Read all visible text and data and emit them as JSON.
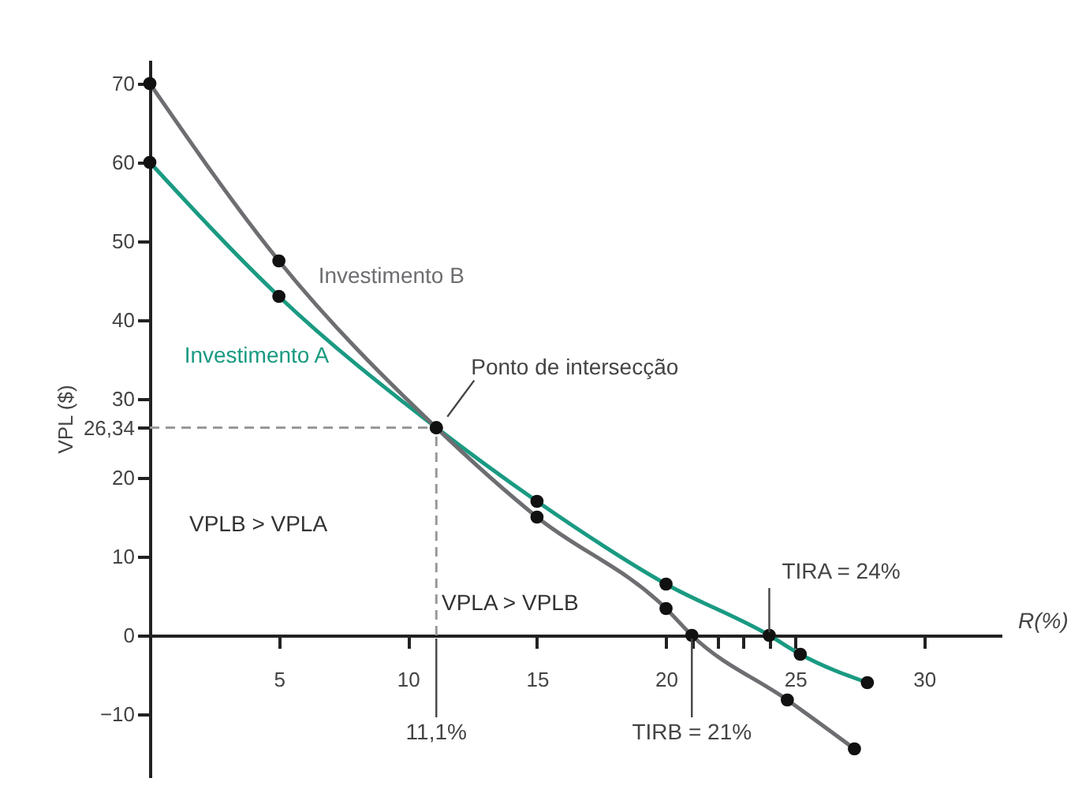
{
  "chart_data": {
    "type": "line",
    "xlabel": "R(%)",
    "ylabel": "VPL ($)",
    "xlim": [
      0,
      33
    ],
    "ylim": [
      -18,
      73
    ],
    "xticks": [
      5,
      10,
      15,
      20,
      {
        "value": 21,
        "label": null
      },
      {
        "value": 22,
        "label": null
      },
      {
        "value": 23,
        "label": null
      },
      {
        "value": 24,
        "label": null
      },
      25,
      30
    ],
    "yticks": [
      -10,
      0,
      10,
      20,
      {
        "value": 26.34,
        "label": "26,34"
      },
      30,
      40,
      50,
      60,
      70
    ],
    "series": [
      {
        "name": "Investimento A",
        "color": "#1a9a82",
        "x": [
          0,
          5,
          11.1,
          15,
          20,
          24,
          25.2,
          27.8
        ],
        "values": [
          60,
          43,
          26.34,
          17,
          6.5,
          0,
          -2.4,
          -6
        ]
      },
      {
        "name": "Investimento B",
        "color": "#6d6e71",
        "x": [
          0,
          5,
          11.1,
          15,
          20,
          21,
          24.7,
          27.3
        ],
        "values": [
          70,
          47.5,
          26.34,
          15,
          3.4,
          0,
          -8.2,
          -14.4
        ]
      }
    ],
    "ref_lines": [
      {
        "axis": "y",
        "value": 26.34,
        "color": "#999999",
        "line_style": "dashed"
      },
      {
        "axis": "x",
        "value": 11.1,
        "color": "#999999",
        "line_style": "dashed"
      }
    ],
    "annotations": [
      {
        "text": "Ponto de intersecção",
        "x": 11.1,
        "y": 26.34
      },
      "VPLB > VPLA",
      "VPLA > VPLB",
      {
        "text": "11,1%",
        "x": 11.1,
        "y": 0
      },
      {
        "text": "TIRA = 24%",
        "x": 24,
        "y": 0
      },
      {
        "text": "TIRB = 21%",
        "x": 21,
        "y": 0
      }
    ],
    "marker": "circle",
    "line_style": "solid",
    "grid": false
  }
}
